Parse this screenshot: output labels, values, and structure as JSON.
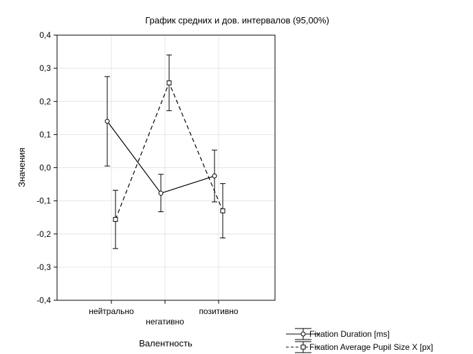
{
  "chart_data": {
    "type": "line",
    "title": "График средних и  дов. интервалов (95,00%)",
    "xlabel": "Валентность",
    "ylabel": "Значения",
    "categories": [
      "нейтрально",
      "негативно",
      "позитивно"
    ],
    "ylim": [
      -0.4,
      0.4
    ],
    "yticks": [
      0.4,
      0.3,
      0.2,
      0.1,
      0.0,
      -0.1,
      -0.2,
      -0.3,
      -0.4
    ],
    "ytick_labels": [
      "0,4",
      "0,3",
      "0,2",
      "0,1",
      "0,0",
      "-0,1",
      "-0,2",
      "-0,3",
      "-0,4"
    ],
    "grid": true,
    "legend_position": "bottom-right",
    "series": [
      {
        "name": "Fixation Duration [ms]",
        "line_style": "solid",
        "marker": "circle",
        "values": [
          0.14,
          -0.077,
          -0.025
        ],
        "ci_low": [
          0.005,
          -0.133,
          -0.103
        ],
        "ci_high": [
          0.275,
          -0.02,
          0.053
        ]
      },
      {
        "name": "Fixation Average Pupil Size X [px]",
        "line_style": "dashed",
        "marker": "square",
        "values": [
          -0.156,
          0.256,
          -0.13
        ],
        "ci_low": [
          -0.244,
          0.172,
          -0.212
        ],
        "ci_high": [
          -0.068,
          0.34,
          -0.048
        ]
      }
    ]
  }
}
